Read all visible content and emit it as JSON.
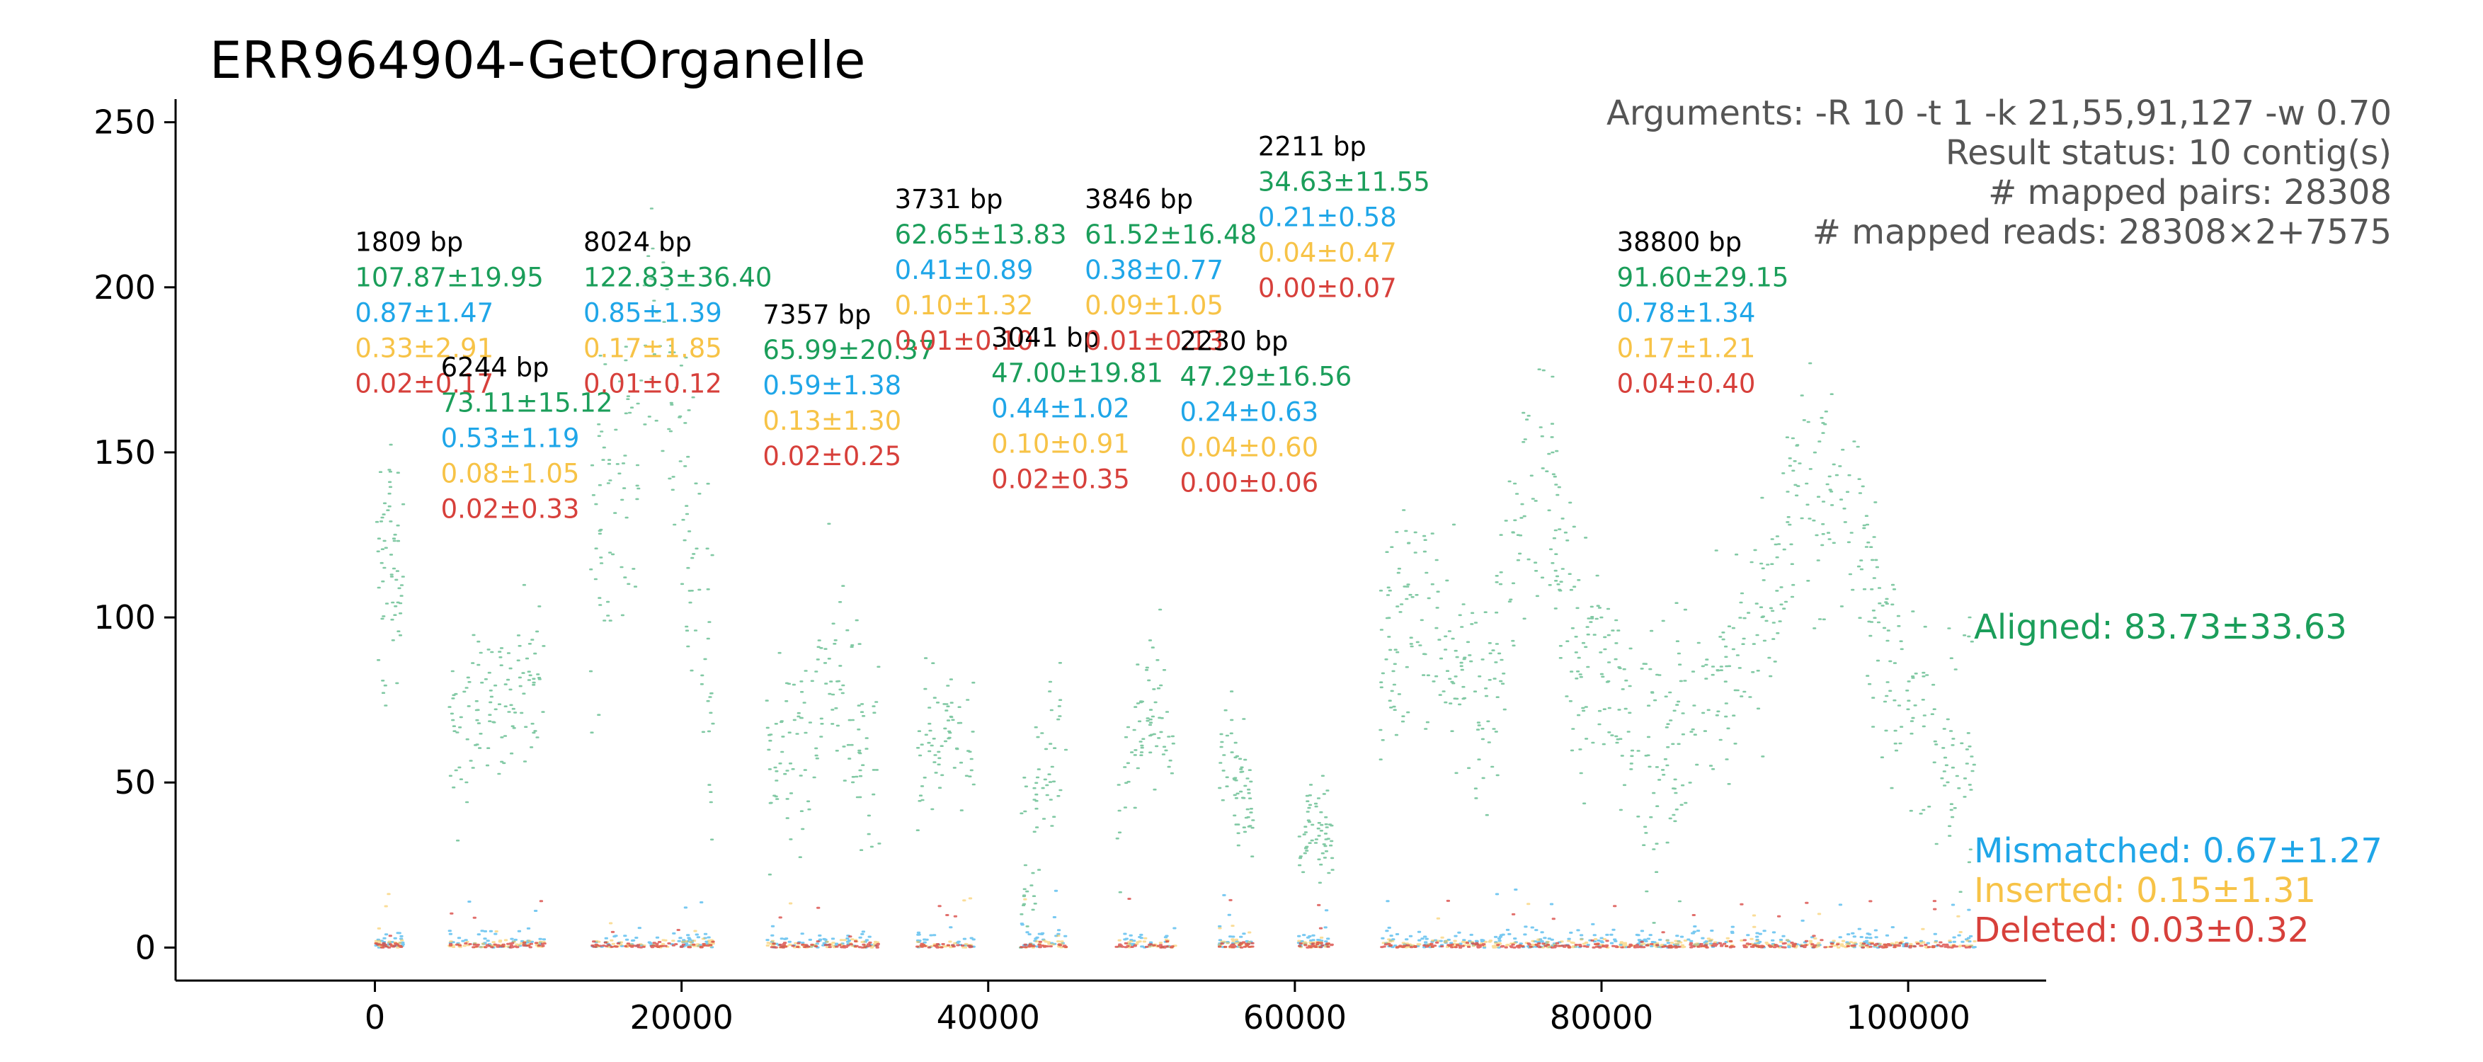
{
  "chart_data": {
    "type": "scatter",
    "title": "ERR964904-GetOrganelle",
    "xlabel": "",
    "ylabel": "",
    "xlim": [
      -13000,
      109000
    ],
    "ylim": [
      -10,
      257
    ],
    "xticks": [
      "0",
      "20000",
      "40000",
      "60000",
      "80000",
      "100000"
    ],
    "xtick_values": [
      0,
      20000,
      40000,
      60000,
      80000,
      100000
    ],
    "yticks": [
      "0",
      "50",
      "100",
      "150",
      "200",
      "250"
    ],
    "ytick_values": [
      0,
      50,
      100,
      150,
      200,
      250
    ],
    "grid": false,
    "colors": {
      "aligned": "#1b9e5a",
      "mismatched": "#1fa6e8",
      "inserted": "#f7c347",
      "deleted": "#d7403b",
      "contig_length": "#000000",
      "info": "#555555"
    },
    "info_lines": [
      "Arguments: -R 10 -t 1 -k 21,55,91,127 -w 0.70",
      "Result status: 10 contig(s)",
      "# mapped pairs: 28308",
      "# mapped reads: 28308×2+7575"
    ],
    "legend": {
      "aligned": "Aligned: 83.73±33.63",
      "mismatched": "Mismatched: 0.67±1.27",
      "inserted": "Inserted: 0.15±1.31",
      "deleted": "Deleted: 0.03±0.32"
    },
    "contigs": [
      {
        "start": 0,
        "end": 1809,
        "length": "1809 bp",
        "aligned": "107.87±19.95",
        "mismatched": "0.87±1.47",
        "inserted": "0.33±2.91",
        "deleted": "0.02±0.17",
        "profile": [
          [
            0,
            100
          ],
          [
            300,
            120
          ],
          [
            600,
            95
          ],
          [
            900,
            130
          ],
          [
            1200,
            105
          ],
          [
            1500,
            125
          ],
          [
            1809,
            110
          ]
        ],
        "spread": 18,
        "label_x": -1300,
        "label_y": 211
      },
      {
        "start": 4800,
        "end": 11044,
        "length": "6244 bp",
        "aligned": "73.11±15.12",
        "mismatched": "0.53±1.19",
        "inserted": "0.08±1.05",
        "deleted": "0.02±0.33",
        "profile": [
          [
            4800,
            70
          ],
          [
            5800,
            65
          ],
          [
            7000,
            75
          ],
          [
            8000,
            80
          ],
          [
            9000,
            70
          ],
          [
            10000,
            85
          ],
          [
            11044,
            78
          ]
        ],
        "spread": 13,
        "label_x": 4300,
        "label_y": 173
      },
      {
        "start": 14000,
        "end": 22024,
        "length": "8024 bp",
        "aligned": "122.83±36.40",
        "mismatched": "0.85±1.39",
        "inserted": "0.17±1.85",
        "deleted": "0.01±0.12",
        "profile": [
          [
            14000,
            100
          ],
          [
            15500,
            130
          ],
          [
            17000,
            160
          ],
          [
            18000,
            200
          ],
          [
            19000,
            160
          ],
          [
            20500,
            120
          ],
          [
            21500,
            80
          ],
          [
            22024,
            70
          ]
        ],
        "spread": 28,
        "label_x": 13600,
        "label_y": 211
      },
      {
        "start": 25500,
        "end": 32857,
        "length": "7357 bp",
        "aligned": "65.99±20.37",
        "mismatched": "0.59±1.38",
        "inserted": "0.13±1.30",
        "deleted": "0.02±0.25",
        "profile": [
          [
            25500,
            50
          ],
          [
            27000,
            60
          ],
          [
            28500,
            70
          ],
          [
            29500,
            90
          ],
          [
            30500,
            80
          ],
          [
            31500,
            60
          ],
          [
            32857,
            55
          ]
        ],
        "spread": 16,
        "label_x": 25300,
        "label_y": 189
      },
      {
        "start": 35300,
        "end": 39031,
        "length": "3731 bp",
        "aligned": "62.65±13.83",
        "mismatched": "0.41±0.89",
        "inserted": "0.10±1.32",
        "deleted": "0.01±0.10",
        "profile": [
          [
            35300,
            55
          ],
          [
            36500,
            60
          ],
          [
            37500,
            70
          ],
          [
            38500,
            58
          ],
          [
            39031,
            50
          ]
        ],
        "spread": 12,
        "label_x": 33900,
        "label_y": 224
      },
      {
        "start": 42000,
        "end": 45041,
        "length": "3041 bp",
        "aligned": "47.00±19.81",
        "mismatched": "0.44±1.02",
        "inserted": "0.10±0.91",
        "deleted": "0.02±0.35",
        "profile": [
          [
            42000,
            20
          ],
          [
            43000,
            40
          ],
          [
            44000,
            55
          ],
          [
            45041,
            75
          ]
        ],
        "spread": 14,
        "label_x": 40200,
        "label_y": 182
      },
      {
        "start": 48300,
        "end": 52146,
        "length": "3846 bp",
        "aligned": "61.52±16.48",
        "mismatched": "0.38±0.77",
        "inserted": "0.09±1.05",
        "deleted": "0.01±0.13",
        "profile": [
          [
            48300,
            40
          ],
          [
            49500,
            60
          ],
          [
            50500,
            75
          ],
          [
            51500,
            65
          ],
          [
            52146,
            55
          ]
        ],
        "spread": 12,
        "label_x": 46300,
        "label_y": 224
      },
      {
        "start": 55000,
        "end": 57230,
        "length": "2230 bp",
        "aligned": "47.29±16.56",
        "mismatched": "0.24±0.63",
        "inserted": "0.04±0.60",
        "deleted": "0.00±0.06",
        "profile": [
          [
            55000,
            60
          ],
          [
            56000,
            55
          ],
          [
            57230,
            35
          ]
        ],
        "spread": 12,
        "label_x": 52500,
        "label_y": 181
      },
      {
        "start": 60200,
        "end": 62411,
        "length": "2211 bp",
        "aligned": "34.63±11.55",
        "mismatched": "0.21±0.58",
        "inserted": "0.04±0.47",
        "deleted": "0.00±0.07",
        "profile": [
          [
            60200,
            25
          ],
          [
            61000,
            40
          ],
          [
            61800,
            35
          ],
          [
            62411,
            30
          ]
        ],
        "spread": 9,
        "label_x": 57600,
        "label_y": 240
      },
      {
        "start": 65500,
        "end": 104300,
        "length": "38800 bp",
        "aligned": "91.60±29.15",
        "mismatched": "0.78±1.34",
        "inserted": "0.17±1.21",
        "deleted": "0.04±0.40",
        "profile": [
          [
            65500,
            85
          ],
          [
            68000,
            100
          ],
          [
            70000,
            90
          ],
          [
            72500,
            70
          ],
          [
            74500,
            135
          ],
          [
            76500,
            140
          ],
          [
            78500,
            90
          ],
          [
            80500,
            85
          ],
          [
            82500,
            55
          ],
          [
            84500,
            60
          ],
          [
            86500,
            70
          ],
          [
            88500,
            85
          ],
          [
            90500,
            100
          ],
          [
            92500,
            135
          ],
          [
            94500,
            140
          ],
          [
            96500,
            120
          ],
          [
            98500,
            90
          ],
          [
            100500,
            70
          ],
          [
            102500,
            55
          ],
          [
            104300,
            65
          ]
        ],
        "spread": 20,
        "label_x": 81000,
        "label_y": 211
      }
    ]
  }
}
